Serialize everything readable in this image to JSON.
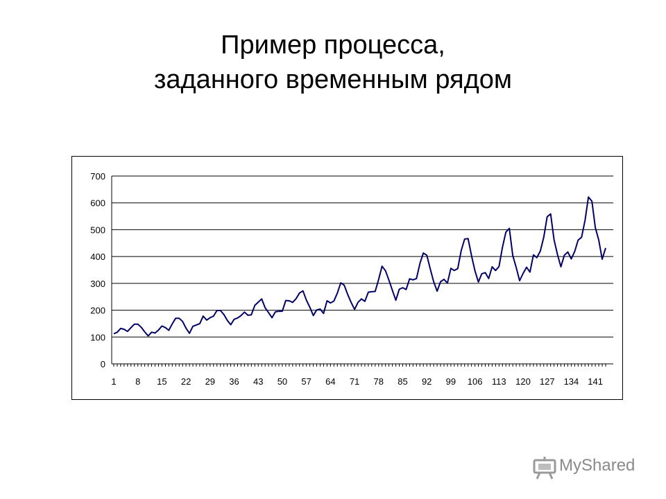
{
  "slide": {
    "title_line1": "Пример процесса,",
    "title_line2": "заданного временным рядом"
  },
  "watermark": {
    "text": "MyShared"
  },
  "colors": {
    "line": "#000066",
    "grid": "#000000",
    "background": "#ffffff"
  },
  "chart_data": {
    "type": "line",
    "title": "",
    "xlabel": "",
    "ylabel": "",
    "ylim": [
      0,
      700
    ],
    "yticks": [
      0,
      100,
      200,
      300,
      400,
      500,
      600,
      700
    ],
    "xticks": [
      1,
      8,
      15,
      22,
      29,
      36,
      43,
      50,
      57,
      64,
      71,
      78,
      85,
      92,
      99,
      106,
      113,
      120,
      127,
      134,
      141
    ],
    "grid": true,
    "legend": "none",
    "x": [
      1,
      2,
      3,
      4,
      5,
      6,
      7,
      8,
      9,
      10,
      11,
      12,
      13,
      14,
      15,
      16,
      17,
      18,
      19,
      20,
      21,
      22,
      23,
      24,
      25,
      26,
      27,
      28,
      29,
      30,
      31,
      32,
      33,
      34,
      35,
      36,
      37,
      38,
      39,
      40,
      41,
      42,
      43,
      44,
      45,
      46,
      47,
      48,
      49,
      50,
      51,
      52,
      53,
      54,
      55,
      56,
      57,
      58,
      59,
      60,
      61,
      62,
      63,
      64,
      65,
      66,
      67,
      68,
      69,
      70,
      71,
      72,
      73,
      74,
      75,
      76,
      77,
      78,
      79,
      80,
      81,
      82,
      83,
      84,
      85,
      86,
      87,
      88,
      89,
      90,
      91,
      92,
      93,
      94,
      95,
      96,
      97,
      98,
      99,
      100,
      101,
      102,
      103,
      104,
      105,
      106,
      107,
      108,
      109,
      110,
      111,
      112,
      113,
      114,
      115,
      116,
      117,
      118,
      119,
      120,
      121,
      122,
      123,
      124,
      125,
      126,
      127,
      128,
      129,
      130,
      131,
      132,
      133,
      134,
      135,
      136,
      137,
      138,
      139,
      140,
      141,
      142,
      143,
      144
    ],
    "series": [
      {
        "values": [
          112,
          118,
          132,
          129,
          121,
          135,
          148,
          148,
          136,
          119,
          104,
          118,
          115,
          126,
          141,
          135,
          125,
          149,
          170,
          170,
          158,
          133,
          114,
          140,
          145,
          150,
          178,
          163,
          172,
          178,
          199,
          199,
          184,
          162,
          146,
          166,
          171,
          180,
          193,
          181,
          183,
          218,
          230,
          242,
          209,
          191,
          172,
          194,
          196,
          196,
          236,
          235,
          229,
          243,
          264,
          272,
          237,
          211,
          180,
          201,
          204,
          188,
          235,
          227,
          234,
          264,
          302,
          293,
          259,
          229,
          203,
          229,
          242,
          233,
          267,
          269,
          270,
          315,
          364,
          347,
          312,
          274,
          237,
          278,
          284,
          277,
          317,
          313,
          318,
          374,
          413,
          405,
          355,
          306,
          271,
          306,
          315,
          301,
          356,
          348,
          355,
          422,
          465,
          467,
          404,
          347,
          305,
          336,
          340,
          318,
          362,
          348,
          363,
          435,
          491,
          505,
          404,
          359,
          310,
          337,
          360,
          342,
          406,
          396,
          420,
          472,
          548,
          559,
          463,
          407,
          362,
          405,
          417,
          391,
          419,
          461,
          472,
          535,
          622,
          606,
          508,
          461,
          390,
          432
        ]
      }
    ]
  }
}
